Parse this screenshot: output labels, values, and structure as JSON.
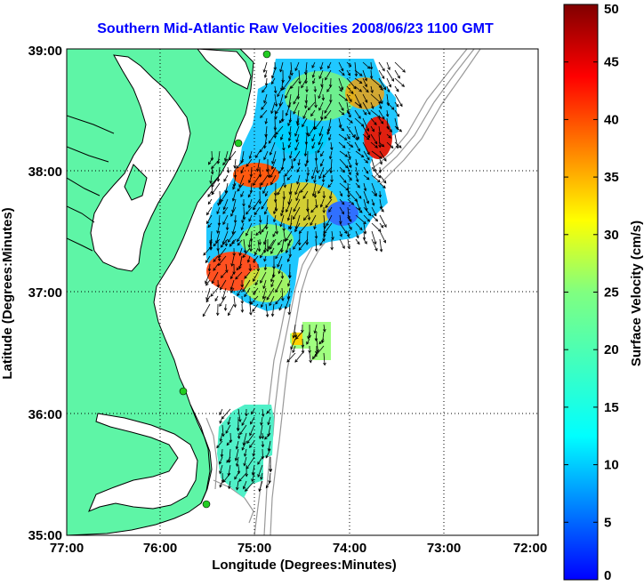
{
  "title": "Southern Mid-Atlantic Raw Velocities 2008/06/23 1100 GMT",
  "map": {
    "xlabel": "Longitude (Degrees:Minutes)",
    "ylabel": "Latitude (Degrees:Minutes)",
    "x_ticks": [
      "77:00",
      "76:00",
      "75:00",
      "74:00",
      "73:00",
      "72:00"
    ],
    "y_ticks": [
      "39:00",
      "38:00",
      "37:00",
      "36:00",
      "35:00"
    ],
    "colors": {
      "land": "#5ef5a6",
      "water": "#ffffff",
      "coast": "#000000",
      "bathymetry": "#999999",
      "station": "#22cc22"
    }
  },
  "colorbar": {
    "label": "Surface Velocity (cm/s)",
    "ticks": [
      "0",
      "5",
      "10",
      "15",
      "20",
      "25",
      "30",
      "35",
      "40",
      "45",
      "50"
    ],
    "min": 0,
    "max": 50
  }
}
